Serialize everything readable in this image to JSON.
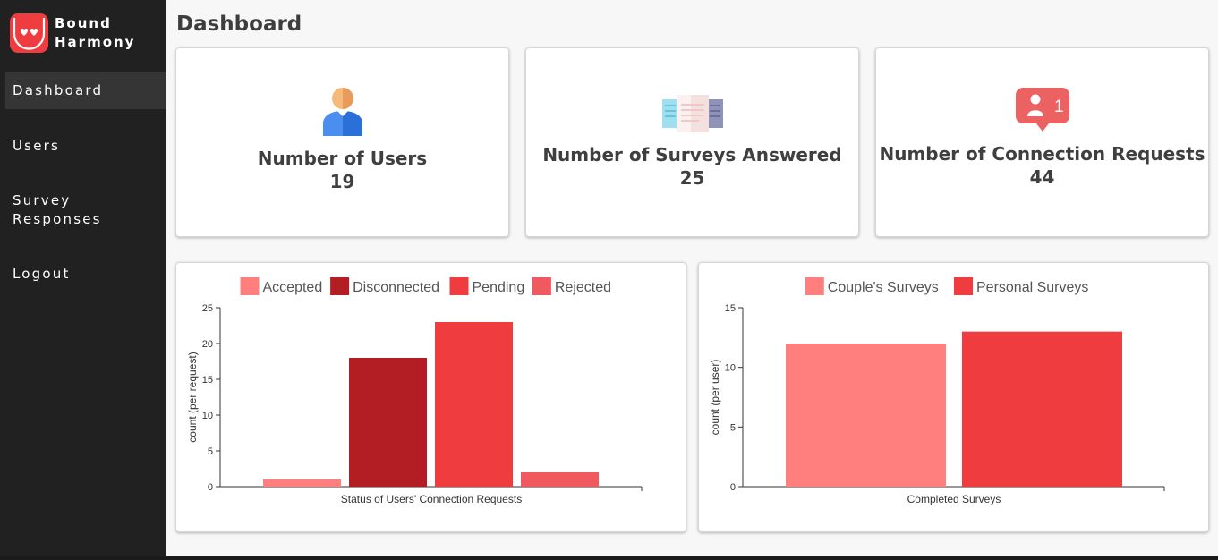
{
  "app": {
    "brand_line1": "Bound",
    "brand_line2": "Harmony"
  },
  "sidebar": {
    "items": [
      {
        "label": "Dashboard",
        "active": true
      },
      {
        "label": "Users"
      },
      {
        "label": "Survey Responses"
      },
      {
        "label": "Logout"
      }
    ]
  },
  "page": {
    "title": "Dashboard"
  },
  "stats": [
    {
      "label": "Number of Users",
      "value": "19",
      "icon": "user-icon"
    },
    {
      "label": "Number of Surveys Answered",
      "value": "25",
      "icon": "surveys-icon"
    },
    {
      "label": "Number of Connection Requests",
      "value": "44",
      "icon": "notification-badge-icon",
      "badge": "1"
    }
  ],
  "colors": {
    "sidebar_bg": "#212121",
    "accent": "#ef3c3f"
  },
  "chart_data": [
    {
      "type": "bar",
      "categories": [
        "Accepted",
        "Disconnected",
        "Pending",
        "Rejected"
      ],
      "values": [
        1,
        18,
        23,
        2
      ],
      "colors": [
        "#ff7f7f",
        "#b21e23",
        "#ef3c3f",
        "#f05a5e"
      ],
      "legend": [
        "Accepted",
        "Disconnected",
        "Pending",
        "Rejected"
      ],
      "legend_position": "top",
      "xlabel": "Status of Users' Connection Requests",
      "ylabel": "count (per request)",
      "ylim": [
        0,
        25
      ],
      "yticks": [
        0,
        5,
        10,
        15,
        20,
        25
      ],
      "grid": false
    },
    {
      "type": "bar",
      "categories": [
        "Couple's Surveys",
        "Personal Surveys"
      ],
      "values": [
        12,
        13
      ],
      "colors": [
        "#ff7f7f",
        "#ef3c3f"
      ],
      "legend": [
        "Couple's Surveys",
        "Personal Surveys"
      ],
      "legend_position": "top",
      "xlabel": "Completed Surveys",
      "ylabel": "count (per user)",
      "ylim": [
        0,
        15
      ],
      "yticks": [
        0,
        5,
        10,
        15
      ],
      "grid": false
    }
  ]
}
